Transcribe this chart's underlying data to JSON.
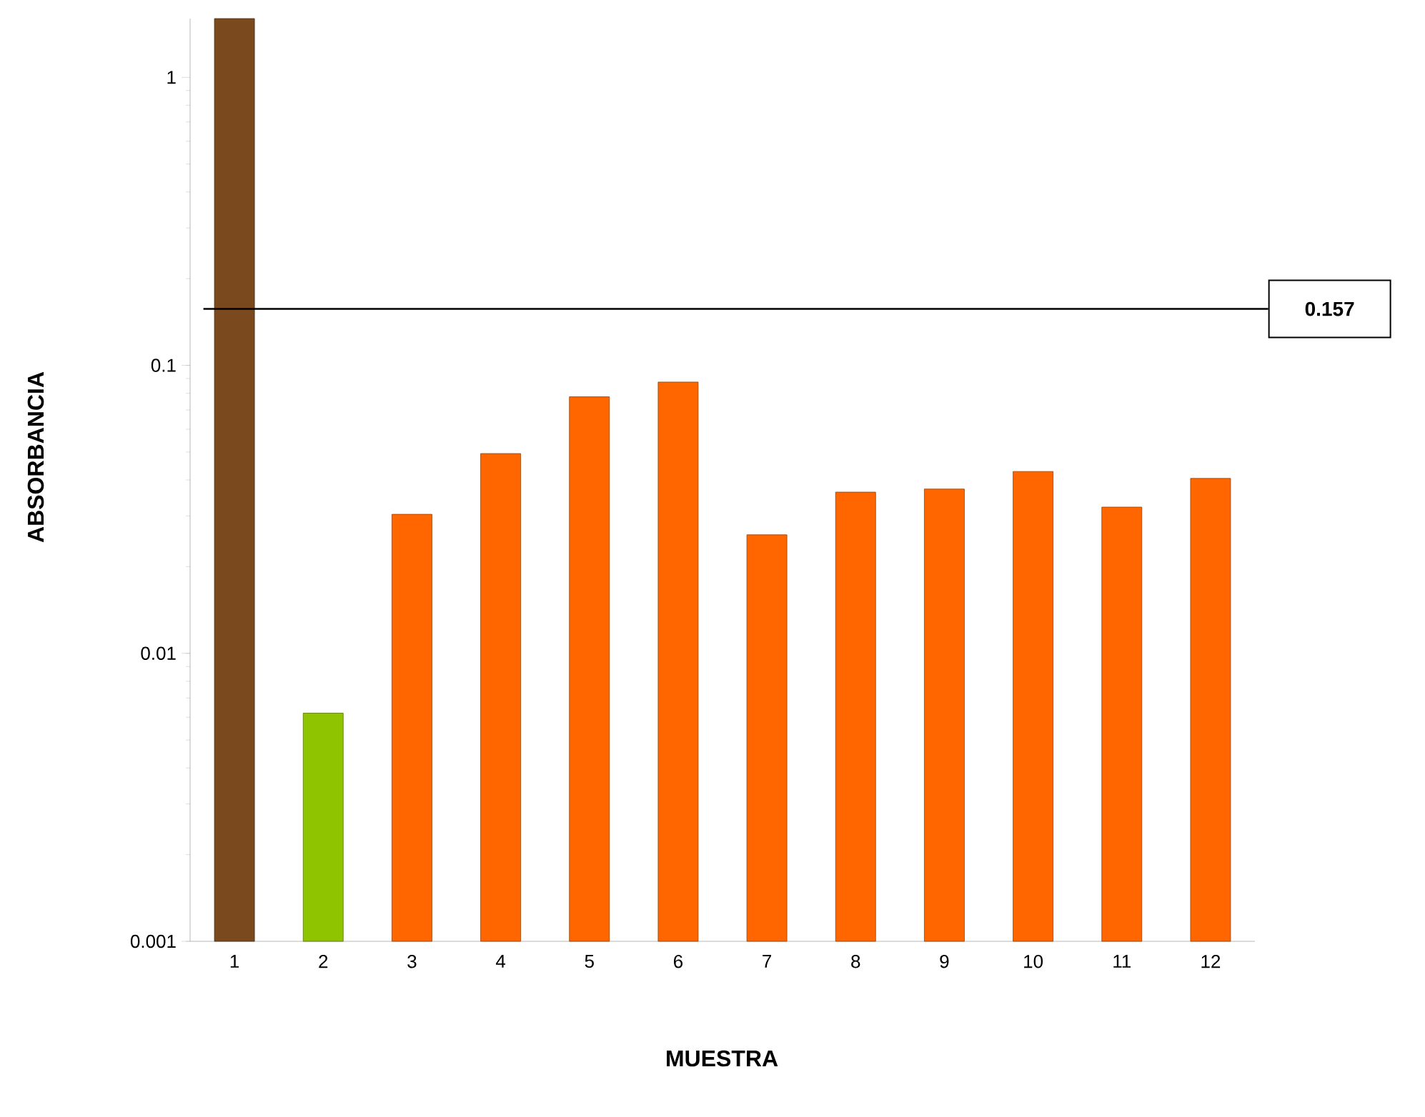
{
  "chart_data": {
    "type": "bar",
    "xlabel": "MUESTRA",
    "ylabel": "ABSORBANCIA",
    "categories": [
      "1",
      "2",
      "3",
      "4",
      "5",
      "6",
      "7",
      "8",
      "9",
      "10",
      "11",
      "12"
    ],
    "values": [
      1.6,
      0.0062,
      0.0304,
      0.0494,
      0.0778,
      0.0875,
      0.0258,
      0.0363,
      0.0372,
      0.0428,
      0.0322,
      0.0405
    ],
    "colors": [
      "#7a4a1e",
      "#8fc400",
      "#ff6600",
      "#ff6600",
      "#ff6600",
      "#ff6600",
      "#ff6600",
      "#ff6600",
      "#ff6600",
      "#ff6600",
      "#ff6600",
      "#ff6600"
    ],
    "log": true,
    "ylim": [
      0.001,
      1.6
    ],
    "yticks": [
      0.001,
      0.01,
      0.1,
      1
    ],
    "ref_lines": [
      {
        "axis": "y",
        "value": 0.157,
        "label": "0.157",
        "color": "#000000"
      }
    ]
  }
}
